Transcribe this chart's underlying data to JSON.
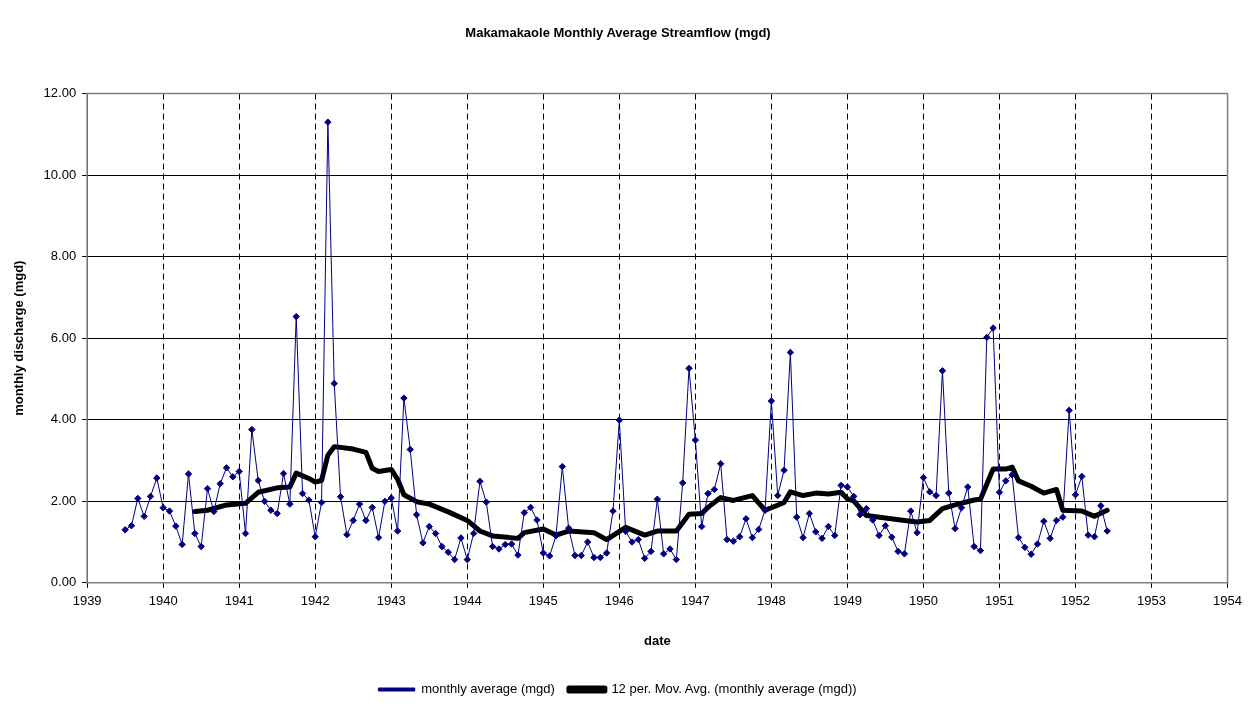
{
  "chart_data": {
    "type": "line",
    "title": "Makamakaole Monthly Average Streamflow (mgd)",
    "xlabel": "date",
    "ylabel": "monthly discharge (mgd)",
    "xlim": [
      "1939",
      "1954"
    ],
    "xticks": [
      "1939",
      "1940",
      "1941",
      "1942",
      "1943",
      "1944",
      "1945",
      "1946",
      "1947",
      "1948",
      "1949",
      "1950",
      "1951",
      "1952",
      "1953",
      "1954"
    ],
    "ylim": [
      0,
      12
    ],
    "yticks": [
      {
        "value": 0,
        "label": "0.00"
      },
      {
        "value": 2,
        "label": "2.00"
      },
      {
        "value": 4,
        "label": "4.00"
      },
      {
        "value": 6,
        "label": "6.00"
      },
      {
        "value": 8,
        "label": "8.00"
      },
      {
        "value": 10,
        "label": "10.00"
      },
      {
        "value": 12,
        "label": "12.00"
      }
    ],
    "grid": true,
    "legend": "bottom",
    "series": [
      {
        "name": "monthly average (mgd)",
        "color": "#000080",
        "marker": "diamond",
        "x": [
          "1939-07",
          "1939-08",
          "1939-09",
          "1939-10",
          "1939-11",
          "1939-12",
          "1940-01",
          "1940-02",
          "1940-03",
          "1940-04",
          "1940-05",
          "1940-06",
          "1940-07",
          "1940-08",
          "1940-09",
          "1940-10",
          "1940-11",
          "1940-12",
          "1941-01",
          "1941-02",
          "1941-03",
          "1941-04",
          "1941-05",
          "1941-06",
          "1941-07",
          "1941-08",
          "1941-09",
          "1941-10",
          "1941-11",
          "1941-12",
          "1942-01",
          "1942-02",
          "1942-03",
          "1942-04",
          "1942-05",
          "1942-06",
          "1942-07",
          "1942-08",
          "1942-09",
          "1942-10",
          "1942-11",
          "1942-12",
          "1943-01",
          "1943-02",
          "1943-03",
          "1943-04",
          "1943-05",
          "1943-06",
          "1943-07",
          "1943-08",
          "1943-09",
          "1943-10",
          "1943-11",
          "1943-12",
          "1944-01",
          "1944-02",
          "1944-03",
          "1944-04",
          "1944-05",
          "1944-06",
          "1944-07",
          "1944-08",
          "1944-09",
          "1944-10",
          "1944-11",
          "1944-12",
          "1945-01",
          "1945-02",
          "1945-03",
          "1945-04",
          "1945-05",
          "1945-06",
          "1945-07",
          "1945-08",
          "1945-09",
          "1945-10",
          "1945-11",
          "1945-12",
          "1946-01",
          "1946-02",
          "1946-03",
          "1946-04",
          "1946-05",
          "1946-06",
          "1946-07",
          "1946-08",
          "1946-09",
          "1946-10",
          "1946-11",
          "1946-12",
          "1947-01",
          "1947-02",
          "1947-03",
          "1947-04",
          "1947-05",
          "1947-06",
          "1947-07",
          "1947-08",
          "1947-09",
          "1947-10",
          "1947-11",
          "1947-12",
          "1948-01",
          "1948-02",
          "1948-03",
          "1948-04",
          "1948-05",
          "1948-06",
          "1948-07",
          "1948-08",
          "1948-09",
          "1948-10",
          "1948-11",
          "1948-12",
          "1949-01",
          "1949-02",
          "1949-03",
          "1949-04",
          "1949-05",
          "1949-06",
          "1949-07",
          "1949-08",
          "1949-09",
          "1949-10",
          "1949-11",
          "1949-12",
          "1950-01",
          "1950-02",
          "1950-03",
          "1950-04",
          "1950-05",
          "1950-06",
          "1950-07",
          "1950-08",
          "1950-09",
          "1950-10",
          "1950-11",
          "1950-12",
          "1951-01",
          "1951-02",
          "1951-03",
          "1951-04",
          "1951-05",
          "1951-06",
          "1951-07",
          "1951-08",
          "1951-09",
          "1951-10",
          "1951-11",
          "1951-12",
          "1952-01",
          "1952-02",
          "1952-03",
          "1952-04",
          "1952-05",
          "1952-06"
        ],
        "values": [
          1.3,
          1.4,
          2.07,
          1.63,
          2.12,
          2.57,
          1.84,
          1.76,
          1.39,
          0.94,
          2.67,
          1.21,
          0.89,
          2.31,
          1.75,
          2.43,
          2.82,
          2.6,
          2.73,
          1.21,
          3.76,
          2.51,
          2.0,
          1.78,
          1.7,
          2.68,
          1.93,
          6.53,
          2.19,
          2.03,
          1.13,
          1.97,
          11.3,
          4.89,
          2.11,
          1.18,
          1.53,
          1.93,
          1.53,
          1.85,
          1.11,
          2.0,
          2.08,
          1.27,
          4.53,
          3.27,
          1.67,
          0.98,
          1.38,
          1.21,
          0.89,
          0.75,
          0.57,
          1.1,
          0.57,
          1.21,
          2.49,
          1.98,
          0.89,
          0.83,
          0.94,
          0.95,
          0.68,
          1.72,
          1.85,
          1.54,
          0.73,
          0.66,
          1.15,
          2.85,
          1.34,
          0.67,
          0.67,
          1.0,
          0.62,
          0.62,
          0.73,
          1.76,
          3.99,
          1.26,
          1.0,
          1.06,
          0.6,
          0.77,
          2.05,
          0.71,
          0.83,
          0.57,
          2.45,
          5.26,
          3.5,
          1.38,
          2.19,
          2.29,
          2.92,
          1.06,
          1.02,
          1.13,
          1.57,
          1.11,
          1.31,
          1.78,
          4.46,
          2.14,
          2.76,
          5.65,
          1.61,
          1.11,
          1.7,
          1.25,
          1.09,
          1.38,
          1.16,
          2.39,
          2.35,
          2.12,
          1.67,
          1.82,
          1.54,
          1.16,
          1.4,
          1.12,
          0.77,
          0.71,
          1.76,
          1.23,
          2.58,
          2.23,
          2.14,
          5.2,
          2.2,
          1.33,
          1.84,
          2.35,
          0.89,
          0.79,
          6.02,
          6.25,
          2.22,
          2.5,
          2.65,
          1.11,
          0.87,
          0.7,
          0.95,
          1.51,
          1.09,
          1.53,
          1.61,
          4.23,
          2.16,
          2.61,
          1.17,
          1.13,
          1.89,
          1.27
        ]
      },
      {
        "name": "12 per. Mov. Avg. (monthly average (mgd))",
        "color": "#000000",
        "marker": "none",
        "x": [
          "1940-06",
          "1940-08",
          "1940-11",
          "1941-02",
          "1941-04",
          "1941-07",
          "1941-09",
          "1941-10",
          "1941-12",
          "1942-01",
          "1942-02",
          "1942-03",
          "1942-04",
          "1942-07",
          "1942-09",
          "1942-10",
          "1942-11",
          "1943-01",
          "1943-02",
          "1943-03",
          "1943-05",
          "1943-07",
          "1943-10",
          "1944-01",
          "1944-03",
          "1944-05",
          "1944-09",
          "1944-10",
          "1945-01",
          "1945-03",
          "1945-05",
          "1945-09",
          "1945-11",
          "1946-02",
          "1946-05",
          "1946-07",
          "1946-10",
          "1946-12",
          "1947-02",
          "1947-03",
          "1947-05",
          "1947-07",
          "1947-10",
          "1947-12",
          "1948-01",
          "1948-03",
          "1948-04",
          "1948-06",
          "1948-08",
          "1948-10",
          "1948-12",
          "1949-01",
          "1949-02",
          "1949-04",
          "1949-07",
          "1949-10",
          "1949-12",
          "1950-02",
          "1950-04",
          "1950-06",
          "1950-09",
          "1950-10",
          "1950-12",
          "1951-02",
          "1951-03",
          "1951-04",
          "1951-06",
          "1951-08",
          "1951-10",
          "1951-11",
          "1952-02",
          "1952-04",
          "1952-06"
        ],
        "values": [
          1.75,
          1.78,
          1.91,
          1.95,
          2.22,
          2.33,
          2.35,
          2.69,
          2.56,
          2.47,
          2.51,
          3.13,
          3.34,
          3.28,
          3.2,
          2.81,
          2.73,
          2.78,
          2.54,
          2.16,
          1.99,
          1.93,
          1.74,
          1.53,
          1.27,
          1.15,
          1.09,
          1.23,
          1.32,
          1.17,
          1.27,
          1.23,
          1.06,
          1.36,
          1.17,
          1.27,
          1.27,
          1.68,
          1.7,
          1.85,
          2.09,
          2.02,
          2.14,
          1.78,
          1.84,
          1.97,
          2.23,
          2.14,
          2.2,
          2.18,
          2.22,
          2.06,
          2.01,
          1.65,
          1.59,
          1.53,
          1.49,
          1.53,
          1.82,
          1.91,
          2.03,
          2.05,
          2.79,
          2.79,
          2.84,
          2.5,
          2.37,
          2.2,
          2.29,
          1.78,
          1.76,
          1.63,
          1.78
        ]
      }
    ]
  }
}
